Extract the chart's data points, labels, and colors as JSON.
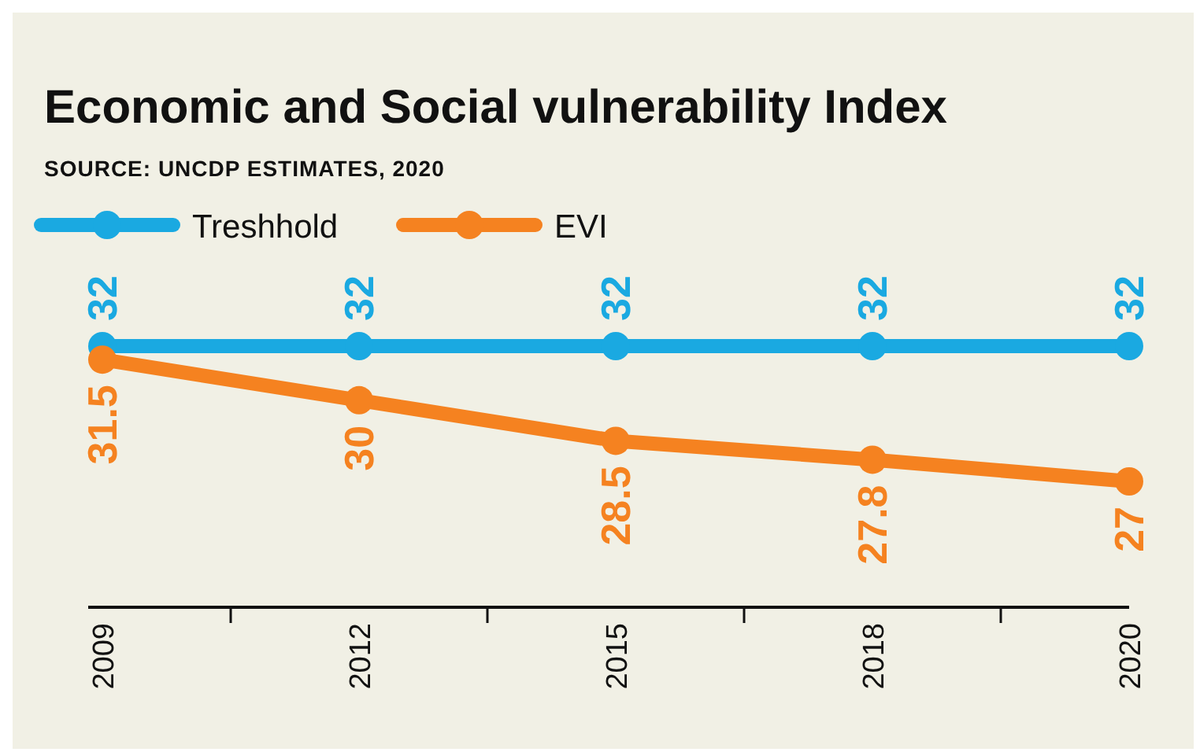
{
  "chart_data": {
    "type": "line",
    "title": "Economic and Social vulnerability Index",
    "annotations": [
      "SOURCE: UNCDP ESTIMATES, 2020"
    ],
    "categories": [
      "2009",
      "2012",
      "2015",
      "2018",
      "2020"
    ],
    "series": [
      {
        "name": "Treshhold",
        "color": "#1aa9e1",
        "values": [
          32,
          32,
          32,
          32,
          32
        ]
      },
      {
        "name": "EVI",
        "color": "#f58220",
        "values": [
          31.5,
          30,
          28.5,
          27.8,
          27
        ]
      }
    ],
    "data_labels": true,
    "legend": "top left",
    "marker": "circle",
    "line_style": "solid"
  }
}
